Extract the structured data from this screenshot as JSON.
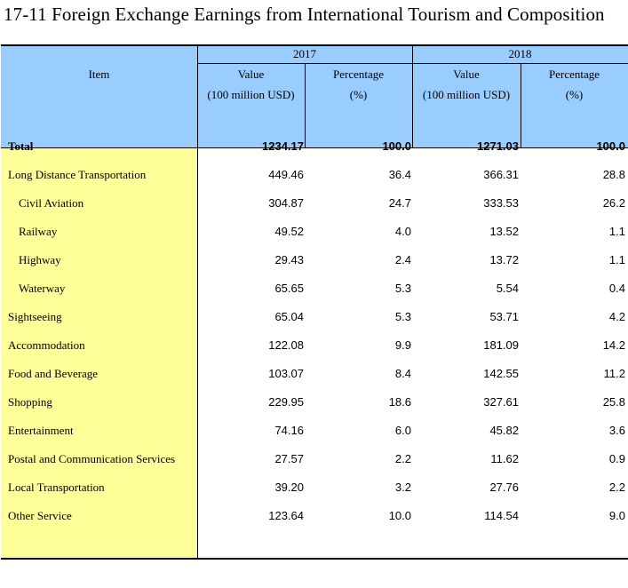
{
  "title": "17-11  Foreign Exchange Earnings from International Tourism and Composition",
  "header": {
    "item": "Item",
    "years": [
      "2017",
      "2018"
    ],
    "value_label": "Value",
    "value_unit": "(100 million USD)",
    "pct_label": "Percentage",
    "pct_unit": "(%)"
  },
  "rows": [
    {
      "label": "Total",
      "v2017": "1234.17",
      "p2017": "100.0",
      "v2018": "1271.03",
      "p2018": "100.0"
    },
    {
      "label": "Long Distance Transportation",
      "v2017": "449.46",
      "p2017": "36.4",
      "v2018": "366.31",
      "p2018": "28.8"
    },
    {
      "label": "Civil Aviation",
      "v2017": "304.87",
      "p2017": "24.7",
      "v2018": "333.53",
      "p2018": "26.2"
    },
    {
      "label": "Railway",
      "v2017": "49.52",
      "p2017": "4.0",
      "v2018": "13.52",
      "p2018": "1.1"
    },
    {
      "label": "Highway",
      "v2017": "29.43",
      "p2017": "2.4",
      "v2018": "13.72",
      "p2018": "1.1"
    },
    {
      "label": "Waterway",
      "v2017": "65.65",
      "p2017": "5.3",
      "v2018": "5.54",
      "p2018": "0.4"
    },
    {
      "label": "Sightseeing",
      "v2017": "65.04",
      "p2017": "5.3",
      "v2018": "53.71",
      "p2018": "4.2"
    },
    {
      "label": "Accommodation",
      "v2017": "122.08",
      "p2017": "9.9",
      "v2018": "181.09",
      "p2018": "14.2"
    },
    {
      "label": "Food and Beverage",
      "v2017": "103.07",
      "p2017": "8.4",
      "v2018": "142.55",
      "p2018": "11.2"
    },
    {
      "label": "Shopping",
      "v2017": "229.95",
      "p2017": "18.6",
      "v2018": "327.61",
      "p2018": "25.8"
    },
    {
      "label": "Entertainment",
      "v2017": "74.16",
      "p2017": "6.0",
      "v2018": "45.82",
      "p2018": "3.6"
    },
    {
      "label": "Postal and Communication Services",
      "v2017": "27.57",
      "p2017": "2.2",
      "v2018": "11.62",
      "p2018": "0.9"
    },
    {
      "label": "Local Transportation",
      "v2017": "39.20",
      "p2017": "3.2",
      "v2018": "27.76",
      "p2018": "2.2"
    },
    {
      "label": "Other Service",
      "v2017": "123.64",
      "p2017": "10.0",
      "v2018": "114.54",
      "p2018": "9.0"
    }
  ]
}
